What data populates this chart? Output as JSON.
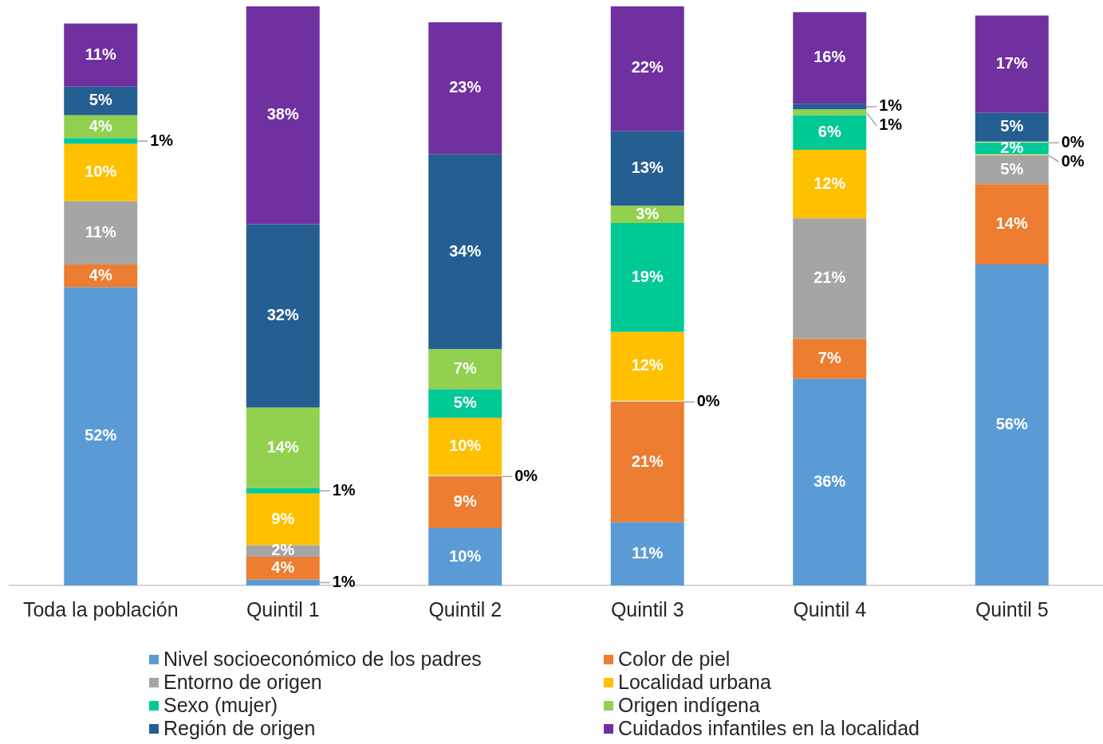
{
  "chart_data": {
    "type": "bar",
    "stacked": true,
    "legend": "bottom",
    "tick_labels": "x",
    "ylim": [
      0,
      101
    ],
    "categories": [
      "Toda la población",
      "Quintil 1",
      "Quintil 2",
      "Quintil 3",
      "Quintil 4",
      "Quintil 5"
    ],
    "series": [
      {
        "name": "Nivel socioeconómico de los padres",
        "color": "#5b9bd5",
        "values": [
          52,
          1,
          10,
          11,
          36,
          56
        ],
        "value_labels": [
          "52%",
          "1%",
          "10%",
          "11%",
          "36%",
          "56%"
        ]
      },
      {
        "name": "Color de piel",
        "color": "#ed7d31",
        "values": [
          4,
          4,
          9,
          21,
          7,
          14
        ],
        "value_labels": [
          "4%",
          "4%",
          "9%",
          "21%",
          "7%",
          "14%"
        ]
      },
      {
        "name": "Entorno de origen",
        "color": "#a5a5a5",
        "values": [
          11,
          2,
          0,
          0,
          21,
          5
        ],
        "value_labels": [
          "11%",
          "2%",
          "0%",
          "0%",
          "21%",
          "5%"
        ]
      },
      {
        "name": "Localidad urbana",
        "color": "#ffc000",
        "values": [
          10,
          9,
          10,
          12,
          12,
          0
        ],
        "value_labels": [
          "10%",
          "9%",
          "10%",
          "12%",
          "12%",
          "0%"
        ]
      },
      {
        "name": "Sexo (mujer)",
        "color": "#00c996",
        "values": [
          1,
          1,
          5,
          19,
          6,
          2
        ],
        "value_labels": [
          "1%",
          "1%",
          "5%",
          "19%",
          "6%",
          "2%"
        ]
      },
      {
        "name": "Origen indígena",
        "color": "#92d050",
        "values": [
          4,
          14,
          7,
          3,
          1,
          0
        ],
        "value_labels": [
          "4%",
          "14%",
          "7%",
          "3%",
          "1%",
          "0%"
        ]
      },
      {
        "name": "Región de origen",
        "color": "#255e91",
        "values": [
          5,
          32,
          34,
          13,
          1,
          5
        ],
        "value_labels": [
          "5%",
          "32%",
          "34%",
          "13%",
          "1%",
          "5%"
        ]
      },
      {
        "name": "Cuidados infantiles en la localidad",
        "color": "#7030a0",
        "values": [
          11,
          38,
          23,
          22,
          16,
          17
        ],
        "value_labels": [
          "11%",
          "38%",
          "23%",
          "22%",
          "16%",
          "17%"
        ]
      }
    ]
  }
}
